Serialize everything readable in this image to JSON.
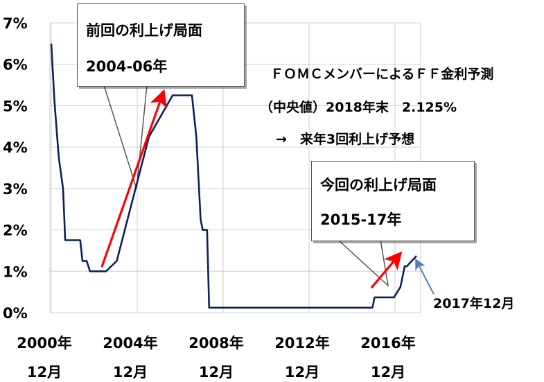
{
  "chart_data": {
    "type": "line",
    "title": "",
    "ylabel": "",
    "xlabel": "",
    "ylim": [
      0,
      7
    ],
    "y_ticks": [
      "0%",
      "1%",
      "2%",
      "3%",
      "4%",
      "5%",
      "6%",
      "7%"
    ],
    "x_tick_labels": [
      {
        "year": "2000年",
        "month": "12月"
      },
      {
        "year": "2004年",
        "month": "12月"
      },
      {
        "year": "2008年",
        "month": "12月"
      },
      {
        "year": "2012年",
        "month": "12月"
      },
      {
        "year": "2016年",
        "month": "12月"
      }
    ],
    "series": [
      {
        "name": "",
        "color": "#0d1f5c",
        "x": [
          2000.95,
          2001.1,
          2001.3,
          2001.5,
          2001.6,
          2002.0,
          2002.3,
          2002.4,
          2002.6,
          2002.75,
          2003.3,
          2003.5,
          2004.0,
          2004.5,
          2005.0,
          2005.5,
          2006.6,
          2007.5,
          2007.7,
          2007.9,
          2008.0,
          2008.2,
          2008.3,
          2008.35,
          2008.95,
          2015.9,
          2016.0,
          2016.9,
          2017.2,
          2017.4,
          2017.5,
          2017.95
        ],
        "y": [
          6.5,
          5.1,
          3.75,
          3.0,
          1.75,
          1.75,
          1.75,
          1.25,
          1.25,
          1.0,
          1.0,
          1.0,
          1.25,
          2.25,
          3.25,
          4.25,
          5.25,
          5.25,
          4.25,
          2.25,
          2.0,
          2.0,
          0.12,
          0.12,
          0.12,
          0.12,
          0.37,
          0.37,
          0.62,
          1.12,
          1.12,
          1.37
        ]
      }
    ],
    "arrows": [
      {
        "color": "#ff0000",
        "from": [
          2003.3,
          1.1
        ],
        "to": [
          2006.15,
          5.3
        ]
      },
      {
        "color": "#ff0000",
        "from": [
          2015.85,
          0.6
        ],
        "to": [
          2017.15,
          1.4
        ]
      },
      {
        "color": "#4f7fbf",
        "from": [
          2018.75,
          0.45
        ],
        "to": [
          2017.95,
          1.25
        ]
      }
    ],
    "annotations": {
      "callout1_line1": "前回の利上げ局面",
      "callout1_line2": "2004-06年",
      "callout2_line1": "今回の利上げ局面",
      "callout2_line2": "2015-17年",
      "fomc_line1": "ＦＯＭＣメンバーによるＦＦ金利予測",
      "fomc_line2": "（中央値）2018年末　2.125%",
      "fomc_line3": "→　来年3回利上げ予想",
      "latest_label": "2017年12月"
    }
  }
}
